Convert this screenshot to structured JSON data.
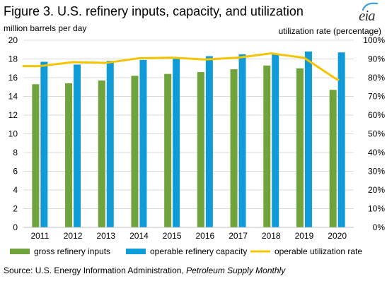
{
  "header": {
    "title": "Figure 3. U.S. refinery inputs, capacity, and utilization",
    "left_unit": "million barrels per day",
    "right_unit": "utilization rate (percentage)",
    "logo_text": "eia"
  },
  "footer": {
    "source_prefix": "Source: U.S. Energy Information  Administration, ",
    "source_italic": "Petroleum Supply Monthly"
  },
  "colors": {
    "gross": "#70a33b",
    "capacity": "#0f9bd7",
    "utilization": "#f5c400",
    "gridline": "#d9d9d9",
    "logo_accent": "#3a9bd5"
  },
  "chart_data": {
    "type": "bar",
    "categories": [
      "2011",
      "2012",
      "2013",
      "2014",
      "2015",
      "2016",
      "2017",
      "2018",
      "2019",
      "2020"
    ],
    "series": [
      {
        "name": "gross refinery inputs",
        "type": "bar",
        "axis": "left",
        "values": [
          15.3,
          15.4,
          15.7,
          16.2,
          16.4,
          16.6,
          16.9,
          17.3,
          17.0,
          14.7
        ]
      },
      {
        "name": "operable refinery capacity",
        "type": "bar",
        "axis": "left",
        "values": [
          17.7,
          17.4,
          17.8,
          17.9,
          18.0,
          18.3,
          18.5,
          18.6,
          18.8,
          18.7
        ]
      },
      {
        "name": "operable utilization rate",
        "type": "line",
        "axis": "right",
        "values": [
          86.2,
          88.3,
          87.9,
          90.4,
          90.7,
          89.7,
          90.7,
          93.0,
          90.6,
          78.9
        ]
      }
    ],
    "y_left": {
      "label": "million barrels per day",
      "ylim": [
        0,
        20
      ],
      "ticks": [
        0,
        2,
        4,
        6,
        8,
        10,
        12,
        14,
        16,
        18,
        20
      ]
    },
    "y_right": {
      "label": "utilization rate (percentage)",
      "ylim": [
        0,
        100
      ],
      "ticks": [
        0,
        10,
        20,
        30,
        40,
        50,
        60,
        70,
        80,
        90,
        100
      ],
      "tick_suffix": "%"
    },
    "grid": true,
    "legend": "bottom"
  }
}
